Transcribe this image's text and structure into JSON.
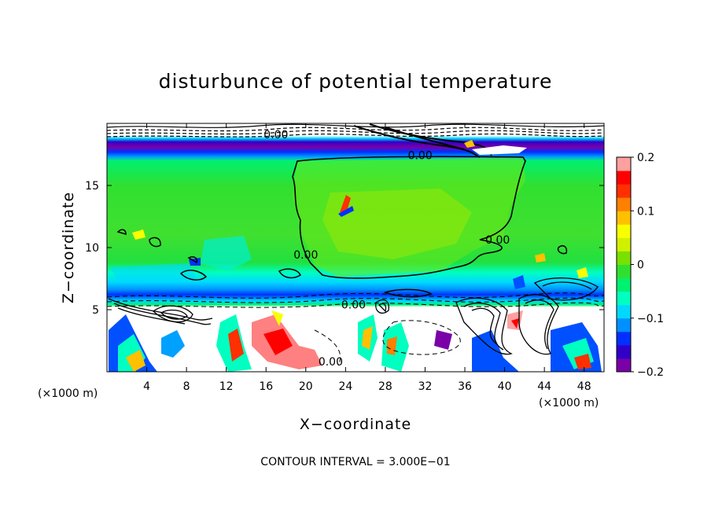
{
  "chart_data": {
    "type": "heatmap",
    "title": "disturbunce of potential temperature",
    "xlabel": "X−coordinate",
    "ylabel": "Z−coordinate",
    "x_unit": "(×1000 m)",
    "z_unit": "(×1000 m)",
    "xlim": [
      0,
      50
    ],
    "ylim": [
      0,
      20
    ],
    "x_ticks": [
      4,
      8,
      12,
      16,
      20,
      24,
      28,
      32,
      36,
      40,
      44,
      48
    ],
    "x_tick_labels": [
      "4",
      "8",
      "12",
      "16",
      "20",
      "24",
      "28",
      "32",
      "36",
      "40",
      "44",
      "48"
    ],
    "y_ticks": [
      5,
      10,
      15
    ],
    "y_tick_labels": [
      "5",
      "10",
      "15"
    ],
    "colorbar": {
      "min": -0.2,
      "max": 0.2,
      "ticks": [
        0.2,
        0.1,
        0,
        -0.1,
        -0.2
      ],
      "tick_labels": [
        "0.2",
        "0.1",
        "0",
        "−0.1",
        "−0.2"
      ],
      "colors": [
        "#7a00a8",
        "#3000c8",
        "#0030ff",
        "#0090ff",
        "#00d8ff",
        "#00ffc0",
        "#00f070",
        "#30e030",
        "#7ae000",
        "#d0f000",
        "#f8ff00",
        "#ffc000",
        "#ff8000",
        "#ff3000",
        "#ff0000",
        "#ffa0a0"
      ]
    },
    "contour_labels": [
      {
        "text": "0.00",
        "x": 17.0,
        "y": 19.0
      },
      {
        "text": "0.00",
        "x": 31.5,
        "y": 17.3
      },
      {
        "text": "0.00",
        "x": 39.3,
        "y": 10.5
      },
      {
        "text": "0.00",
        "x": 20.0,
        "y": 9.3
      },
      {
        "text": "0.00",
        "x": 24.8,
        "y": 5.3
      },
      {
        "text": "0.00",
        "x": 22.5,
        "y": 0.7
      }
    ],
    "contour_interval_text": "CONTOUR INTERVAL = 3.000E−01",
    "grid": false,
    "legend": "right"
  }
}
